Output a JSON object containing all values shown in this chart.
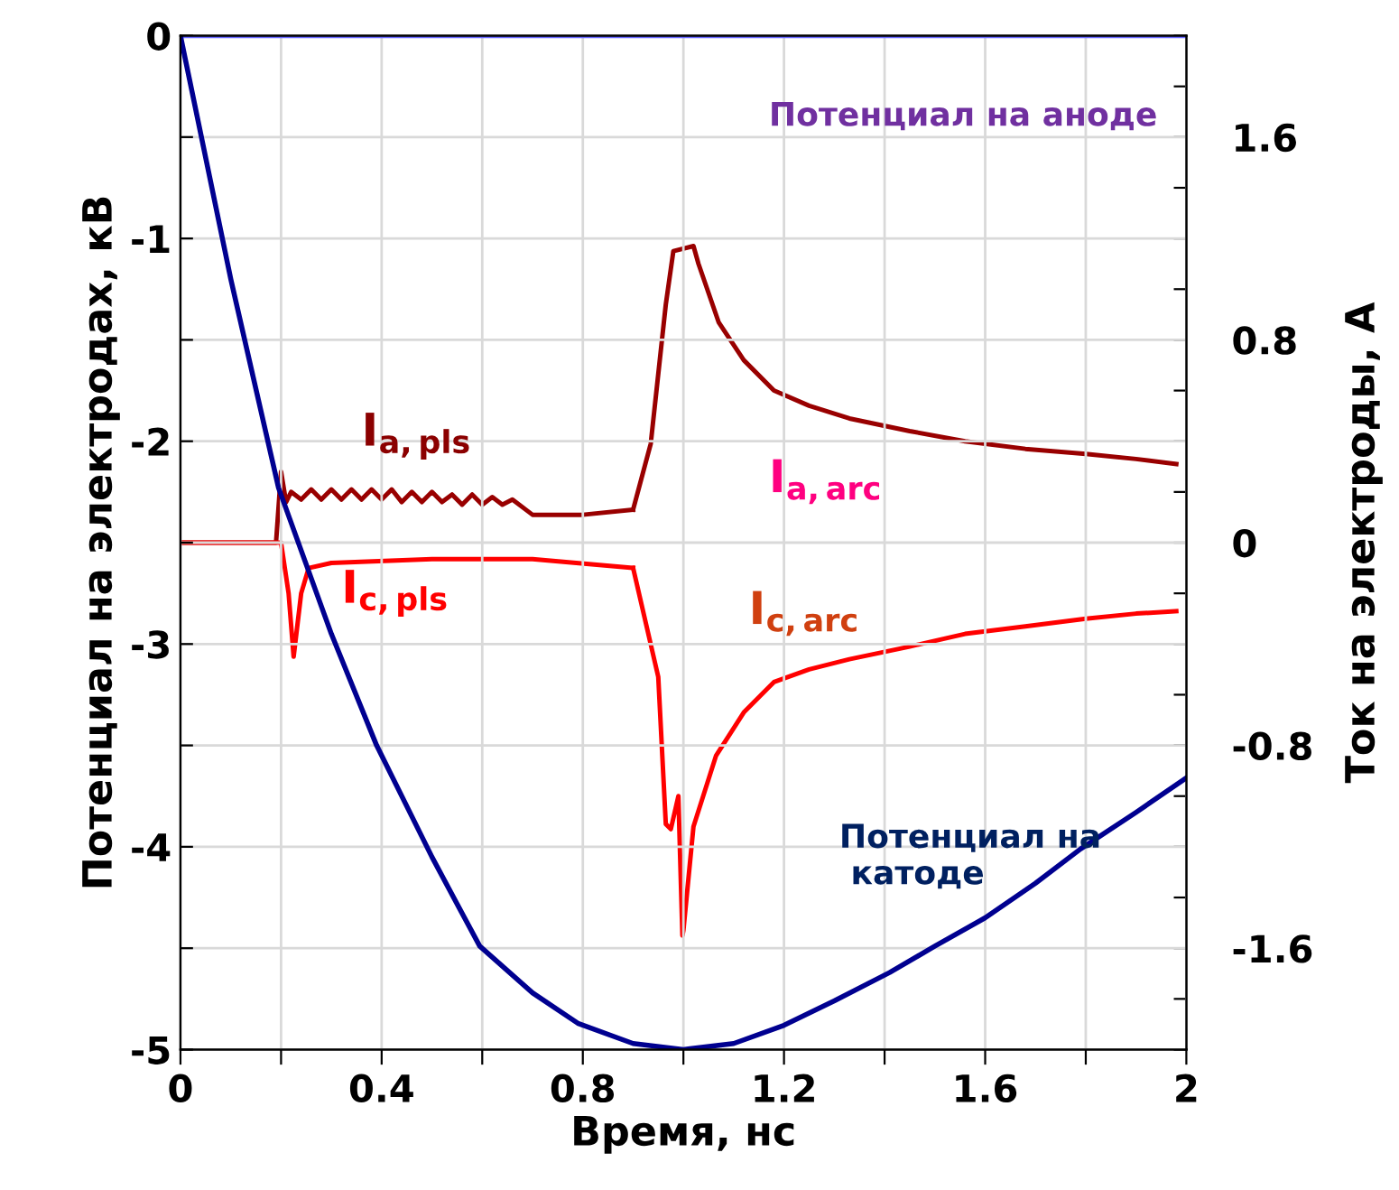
{
  "chart_data": {
    "type": "line",
    "xlabel": "Время, нс",
    "ylabel": "Потенциал на электродах, кВ",
    "y2label": "Ток на электроды, А",
    "xlim": [
      0,
      2
    ],
    "ylim": [
      -5,
      0
    ],
    "y2lim": [
      -2,
      2
    ],
    "xticks": [
      0,
      {
        "value": 0.2,
        "label": null
      },
      0.4,
      {
        "value": 0.6,
        "label": null
      },
      0.8,
      {
        "value": 1.0,
        "label": null
      },
      1.2,
      {
        "value": 1.4,
        "label": null
      },
      1.6,
      {
        "value": 1.8,
        "label": null
      },
      2
    ],
    "yticks": [
      0,
      {
        "value": -0.5,
        "label": null
      },
      -1,
      {
        "value": -1.5,
        "label": null
      },
      -2,
      {
        "value": -2.5,
        "label": null
      },
      -3,
      {
        "value": -3.5,
        "label": null
      },
      -4,
      {
        "value": -4.5,
        "label": null
      },
      -5
    ],
    "y2ticks": [
      {
        "value": -2,
        "label": null
      },
      {
        "value": -1.8,
        "label": null
      },
      -1.6,
      {
        "value": -1.4,
        "label": null
      },
      {
        "value": -1.2,
        "label": null
      },
      {
        "value": -1.0,
        "label": null
      },
      -0.8,
      {
        "value": -0.6,
        "label": null
      },
      {
        "value": -0.4,
        "label": null
      },
      {
        "value": -0.2,
        "label": null
      },
      0,
      {
        "value": 0.2,
        "label": null
      },
      {
        "value": 0.4,
        "label": null
      },
      {
        "value": 0.6,
        "label": null
      },
      0.8,
      {
        "value": 1.0,
        "label": null
      },
      {
        "value": 1.2,
        "label": null
      },
      {
        "value": 1.4,
        "label": null
      },
      1.6,
      {
        "value": 1.8,
        "label": null
      },
      {
        "value": 2,
        "label": null
      }
    ],
    "grid": true,
    "marker": "none",
    "line_style": "solid",
    "series": [
      {
        "name": "Потенциал на аноде",
        "color": "#6666ff",
        "x": [
          0,
          2
        ],
        "values": [
          0,
          0
        ]
      },
      {
        "name": "Потенциал на\n катоде",
        "color": "#000090",
        "x": [
          0,
          0.1,
          0.195,
          0.3,
          0.39,
          0.5,
          0.595,
          0.7,
          0.79,
          0.9,
          1.0,
          1.1,
          1.2,
          1.3,
          1.41,
          1.5,
          1.6,
          1.7,
          1.79,
          1.9,
          2.0
        ],
        "values": [
          0,
          -1.2,
          -2.23,
          -2.95,
          -3.5,
          -4.05,
          -4.49,
          -4.72,
          -4.87,
          -4.97,
          -5,
          -4.97,
          -4.88,
          -4.76,
          -4.62,
          -4.49,
          -4.35,
          -4.18,
          -4.01,
          -3.83,
          -3.66
        ]
      },
      {
        "name": "I$_{a,pls}$",
        "color": "#990000",
        "axis": "y2",
        "x": [
          0,
          0.19,
          0.2,
          0.21,
          0.22,
          0.24,
          0.26,
          0.28,
          0.3,
          0.32,
          0.34,
          0.36,
          0.38,
          0.4,
          0.42,
          0.44,
          0.46,
          0.48,
          0.5,
          0.52,
          0.54,
          0.56,
          0.58,
          0.6,
          0.62,
          0.64,
          0.66,
          0.7,
          0.8,
          0.9
        ],
        "values": [
          0,
          0,
          0.28,
          0.16,
          0.2,
          0.17,
          0.21,
          0.17,
          0.21,
          0.17,
          0.21,
          0.17,
          0.21,
          0.17,
          0.21,
          0.16,
          0.2,
          0.16,
          0.2,
          0.16,
          0.19,
          0.15,
          0.19,
          0.15,
          0.18,
          0.15,
          0.17,
          0.11,
          0.11,
          0.13
        ]
      },
      {
        "name": "I$_{c,pls}$",
        "color": "#ff0000",
        "axis": "y2",
        "x": [
          0,
          0.2,
          0.215,
          0.225,
          0.24,
          0.255,
          0.3,
          0.5,
          0.7,
          0.9
        ],
        "values": [
          0,
          0,
          -0.2,
          -0.45,
          -0.2,
          -0.1,
          -0.08,
          -0.065,
          -0.065,
          -0.1
        ]
      },
      {
        "name": "I$_{a,arc}$",
        "color": "#990000",
        "axis": "y2",
        "x": [
          0.9,
          0.935,
          0.965,
          0.98,
          1.02,
          1.03,
          1.07,
          1.12,
          1.18,
          1.25,
          1.33,
          1.45,
          1.56,
          1.68,
          1.8,
          1.9,
          1.98
        ],
        "values": [
          0.13,
          0.39,
          0.94,
          1.15,
          1.17,
          1.1,
          0.87,
          0.72,
          0.6,
          0.54,
          0.49,
          0.44,
          0.4,
          0.37,
          0.35,
          0.33,
          0.31
        ]
      },
      {
        "name": "I$_{c,arc}$",
        "color": "#ff0000",
        "axis": "y2",
        "x": [
          0.9,
          0.95,
          0.965,
          0.975,
          0.99,
          0.998,
          1.0,
          1.02,
          1.065,
          1.12,
          1.18,
          1.25,
          1.33,
          1.45,
          1.56,
          1.68,
          1.8,
          1.9,
          1.98
        ],
        "values": [
          -0.1,
          -0.53,
          -1.11,
          -1.13,
          -1.0,
          -1.55,
          -1.53,
          -1.12,
          -0.84,
          -0.67,
          -0.55,
          -0.5,
          -0.46,
          -0.41,
          -0.36,
          -0.33,
          -0.3,
          -0.28,
          -0.27
        ]
      }
    ]
  }
}
